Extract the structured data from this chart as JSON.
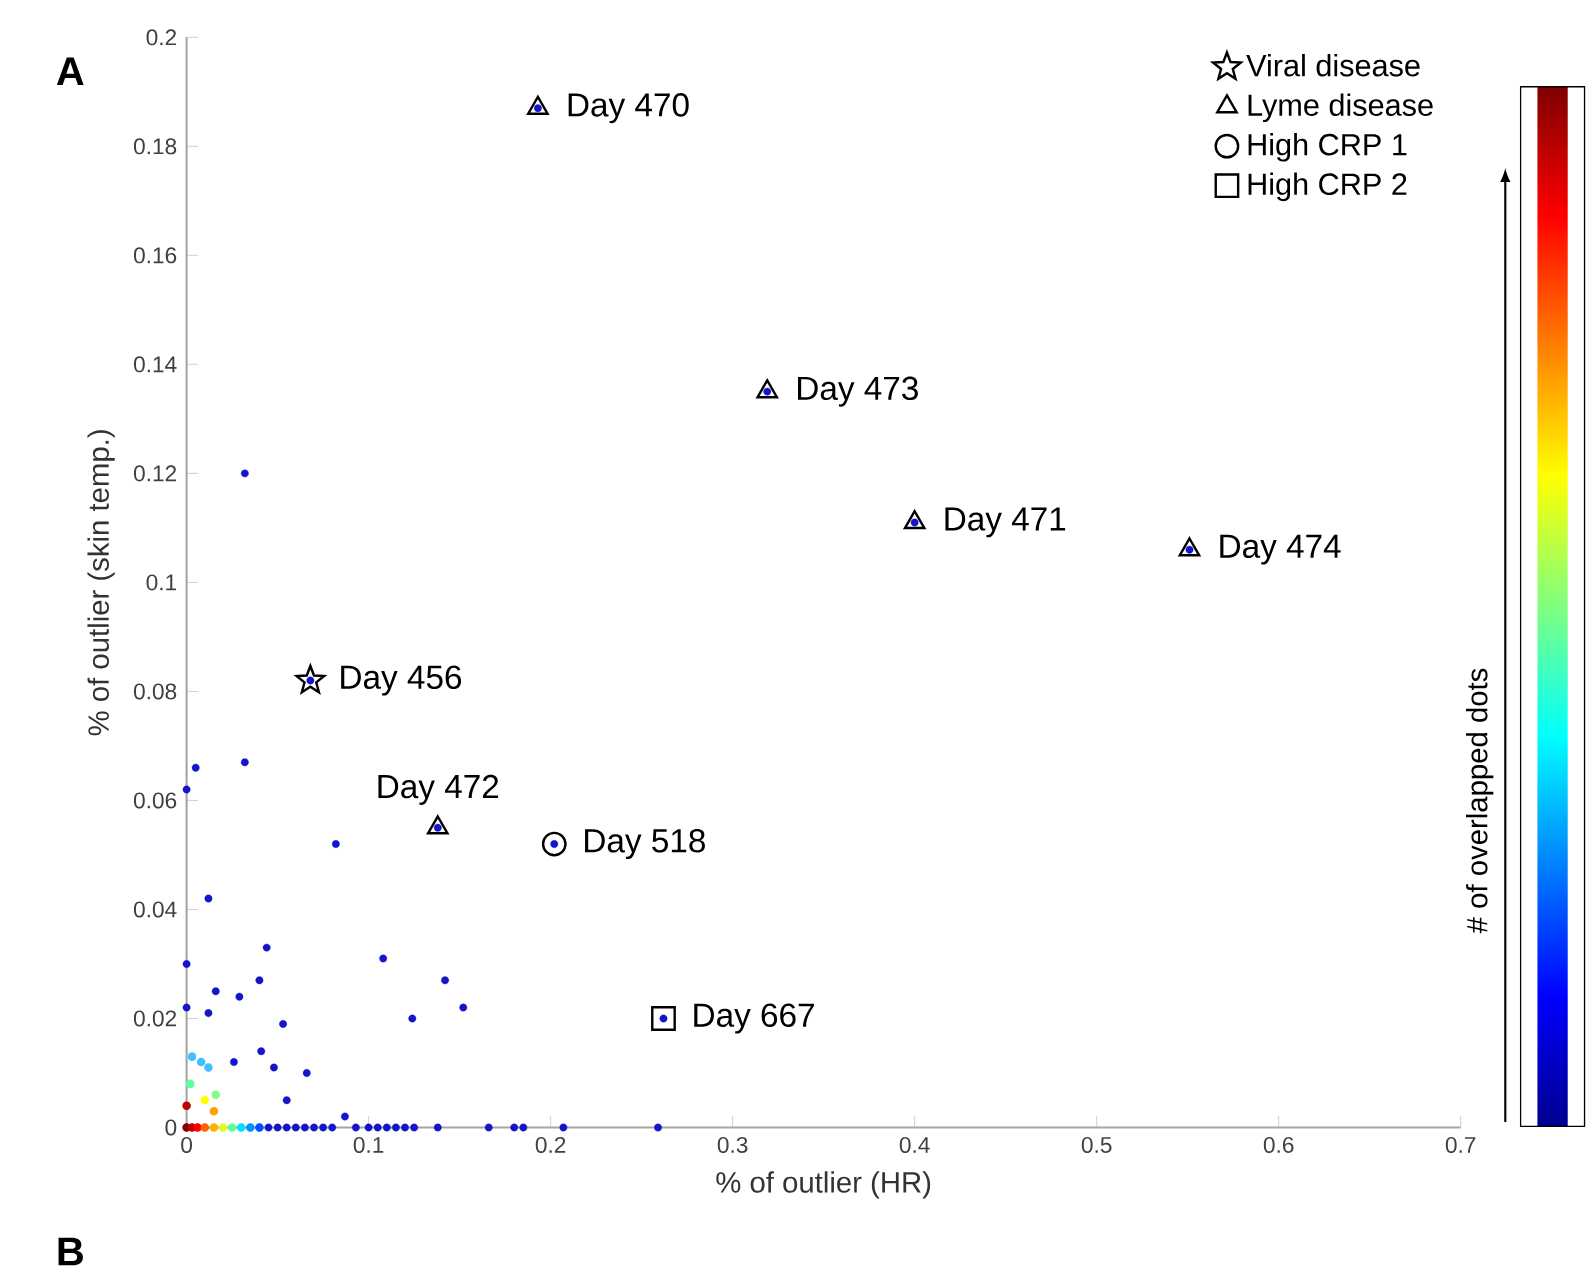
{
  "chart_data": {
    "type": "scatter",
    "xlabel": "% of outlier (HR)",
    "ylabel": "% of outlier (skin temp.)",
    "clabel": "# of overlapped dots",
    "xlim": [
      0,
      0.7
    ],
    "ylim": [
      0,
      0.2
    ],
    "xticks": [
      0,
      0.1,
      0.2,
      0.3,
      0.4,
      0.5,
      0.6,
      0.7
    ],
    "yticks": [
      0,
      0.02,
      0.04,
      0.06,
      0.08,
      0.1,
      0.12,
      0.14,
      0.16,
      0.18,
      0.2
    ],
    "legend": "top right",
    "grid": false,
    "annotations": [
      "A",
      "B",
      {
        "text": "Day 470",
        "x": 0.193,
        "y": 0.187
      },
      {
        "text": "Day 473",
        "x": 0.319,
        "y": 0.135
      },
      {
        "text": "Day 471",
        "x": 0.4,
        "y": 0.111
      },
      {
        "text": "Day 474",
        "x": 0.551,
        "y": 0.106
      },
      {
        "text": "Day 456",
        "x": 0.068,
        "y": 0.082
      },
      {
        "text": "Day 472",
        "x": 0.138,
        "y": 0.055
      },
      {
        "text": "Day 518",
        "x": 0.202,
        "y": 0.052
      },
      {
        "text": "Day 667",
        "x": 0.262,
        "y": 0.02
      }
    ],
    "series": [
      {
        "color": "#1414c8",
        "marker": "circle",
        "x": [
          0.0,
          0.005,
          0.032,
          0.082,
          0.012,
          0.0,
          0.044,
          0.04,
          0.016,
          0.029,
          0.0,
          0.012,
          0.053,
          0.041,
          0.026,
          0.048,
          0.066,
          0.055,
          0.108,
          0.142,
          0.152,
          0.124,
          0.087,
          0.032,
          0.045,
          0.05,
          0.055,
          0.06,
          0.065,
          0.07,
          0.075,
          0.08,
          0.093,
          0.1,
          0.105,
          0.11,
          0.115,
          0.12,
          0.125,
          0.138,
          0.166,
          0.18,
          0.185,
          0.207,
          0.259,
          0.193,
          0.319,
          0.4,
          0.551,
          0.068,
          0.138,
          0.202,
          0.262
        ],
        "values": [
          0.062,
          0.066,
          0.067,
          0.052,
          0.042,
          0.03,
          0.033,
          0.027,
          0.025,
          0.024,
          0.022,
          0.021,
          0.019,
          0.014,
          0.012,
          0.011,
          0.01,
          0.005,
          0.031,
          0.027,
          0.022,
          0.02,
          0.002,
          0.12,
          0,
          0,
          0,
          0,
          0,
          0,
          0,
          0,
          0,
          0,
          0,
          0,
          0,
          0,
          0,
          0,
          0,
          0,
          0,
          0,
          0,
          0.187,
          0.135,
          0.111,
          0.106,
          0.082,
          0.055,
          0.052,
          0.02
        ]
      },
      {
        "marker": "circle",
        "x": [
          0.0,
          0.003,
          0.006,
          0.01,
          0.015,
          0.02,
          0.025,
          0.03,
          0.035,
          0.04,
          0.003,
          0.008,
          0.012,
          0.002,
          0.01,
          0.015,
          0.016,
          0.0
        ],
        "values": [
          0,
          0,
          0,
          0,
          0,
          0,
          0,
          0,
          0,
          0,
          0.013,
          0.012,
          0.011,
          0.008,
          0.005,
          0.003,
          0.006,
          0.004
        ],
        "colors": [
          "#800000",
          "#c00000",
          "#ff0000",
          "#ff6000",
          "#ffb000",
          "#e0ff20",
          "#60ff90",
          "#00e0ff",
          "#0090ff",
          "#0050ff",
          "#40c0ff",
          "#40c0ff",
          "#40c0ff",
          "#60ffa0",
          "#ffff00",
          "#ffa000",
          "#80ff80",
          "#c00000"
        ]
      },
      {
        "name": "Viral disease",
        "color": "#000000",
        "marker": "star",
        "x": [
          0.068
        ],
        "values": [
          0.082
        ]
      },
      {
        "name": "Lyme disease",
        "color": "#000000",
        "marker": "triangle",
        "x": [
          0.193,
          0.319,
          0.4,
          0.551,
          0.138
        ],
        "values": [
          0.187,
          0.135,
          0.111,
          0.106,
          0.055
        ]
      },
      {
        "name": "High CRP 1",
        "color": "#000000",
        "marker": "circle",
        "x": [
          0.202
        ],
        "values": [
          0.052
        ]
      },
      {
        "name": "High CRP 2",
        "color": "#000000",
        "marker": "square",
        "x": [
          0.262
        ],
        "values": [
          0.02
        ]
      }
    ]
  }
}
